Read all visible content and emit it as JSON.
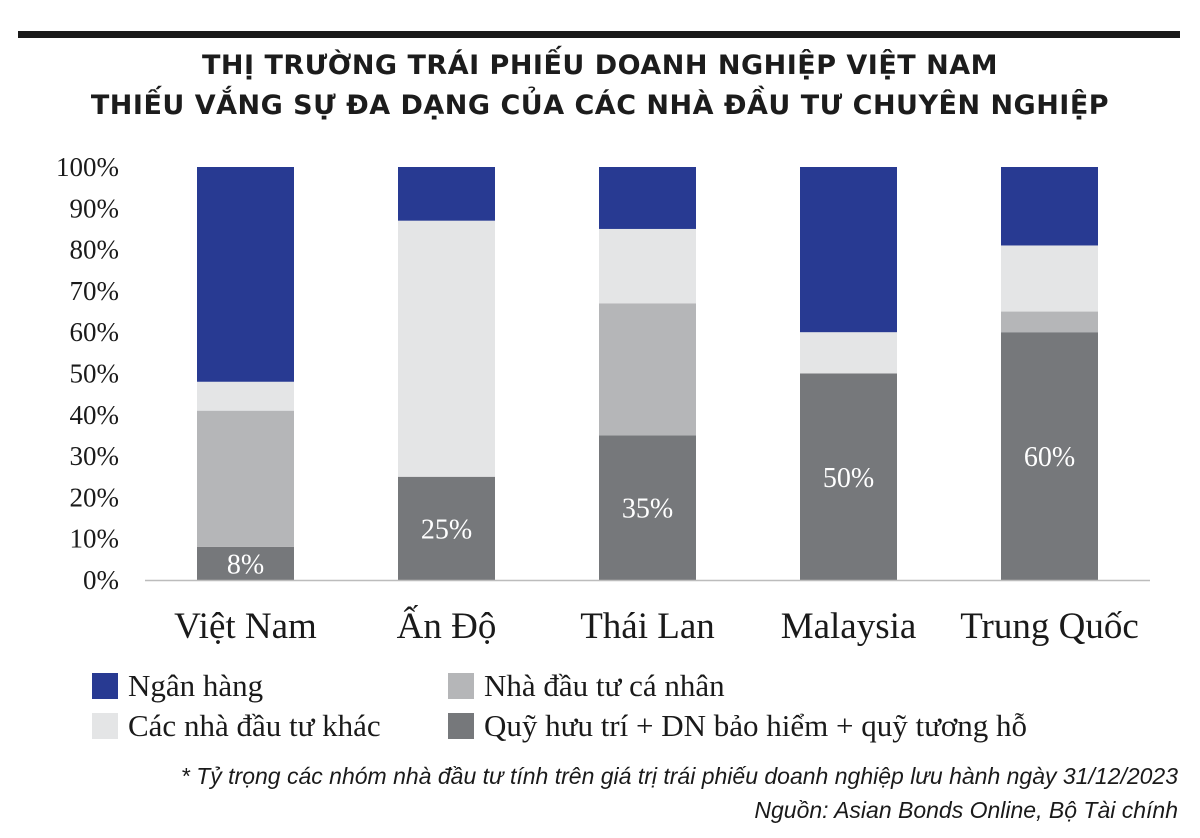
{
  "header": {
    "title_line1": "THỊ TRƯỜNG TRÁI PHIẾU DOANH NGHIỆP VIỆT NAM",
    "title_line2": "THIẾU VẮNG SỰ ĐA DẠNG CỦA CÁC NHÀ ĐẦU TƯ CHUYÊN NGHIỆP"
  },
  "chart_data": {
    "type": "bar",
    "stacked": true,
    "percent": true,
    "categories": [
      "Việt Nam",
      "Ấn Độ",
      "Thái Lan",
      "Malaysia",
      "Trung Quốc"
    ],
    "series": [
      {
        "name": "Quỹ hưu trí + DN bảo hiểm + quỹ tương hỗ",
        "color": "#76787b",
        "values": [
          8,
          25,
          35,
          50,
          60
        ],
        "labels": [
          "8%",
          "25%",
          "35%",
          "50%",
          "60%"
        ]
      },
      {
        "name": "Nhà đầu tư cá nhân",
        "color": "#b5b6b8",
        "values": [
          33,
          0,
          32,
          0,
          5
        ]
      },
      {
        "name": "Các nhà đầu tư khác",
        "color": "#e4e5e6",
        "values": [
          7,
          62,
          18,
          10,
          16
        ]
      },
      {
        "name": "Ngân hàng",
        "color": "#283a92",
        "values": [
          52,
          13,
          15,
          40,
          19
        ]
      }
    ],
    "ylim": [
      0,
      100
    ],
    "yticks": [
      "0%",
      "10%",
      "20%",
      "30%",
      "40%",
      "50%",
      "60%",
      "70%",
      "80%",
      "90%",
      "100%"
    ],
    "grid": false,
    "legend_placement": "bottom"
  },
  "legend": [
    {
      "label": "Ngân hàng",
      "color": "#283a92"
    },
    {
      "label": "Nhà đầu tư cá nhân",
      "color": "#b5b6b8"
    },
    {
      "label": "Các nhà đầu tư khác",
      "color": "#e4e5e6"
    },
    {
      "label": "Quỹ hưu trí + DN bảo hiểm + quỹ tương hỗ",
      "color": "#76787b"
    }
  ],
  "footer": {
    "note": "* Tỷ trọng các nhóm nhà đầu tư tính trên giá trị trái phiếu doanh nghiệp lưu hành ngày 31/12/2023",
    "source": "Nguồn: Asian Bonds Online, Bộ Tài chính"
  }
}
